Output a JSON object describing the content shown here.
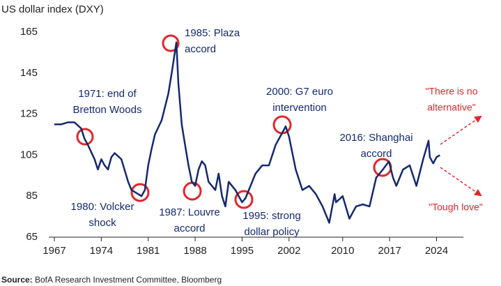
{
  "chart_data": {
    "type": "line",
    "title": "US dollar index (DXY)",
    "x": [
      1967,
      1968,
      1969,
      1970,
      1971,
      1971.5,
      1972,
      1973,
      1973.5,
      1974,
      1974.5,
      1975,
      1975.5,
      1976,
      1977,
      1978,
      1978.5,
      1979,
      1980,
      1980.5,
      1981,
      1981.5,
      1982,
      1983,
      1984,
      1984.5,
      1985.2,
      1985.5,
      1986,
      1986.5,
      1987,
      1987.5,
      1988,
      1988.5,
      1989,
      1989.5,
      1990,
      1991,
      1991.5,
      1992,
      1992.5,
      1993,
      1994,
      1995,
      1995.5,
      1996,
      1997,
      1998,
      1999,
      2000,
      2001,
      2001.5,
      2002,
      2002.5,
      2003,
      2004,
      2005,
      2006,
      2007,
      2008,
      2008.8,
      2009,
      2010,
      2011,
      2012,
      2013,
      2014,
      2015,
      2016,
      2016.9,
      2017.5,
      2018,
      2019,
      2020,
      2021,
      2022,
      2022.8,
      2023,
      2023.5,
      2024,
      2024.5
    ],
    "series": [
      {
        "name": "DXY",
        "color": "#14286e",
        "values": [
          120,
          120,
          121,
          121,
          118,
          113,
          110,
          103,
          98,
          103,
          100,
          98,
          104,
          106,
          103,
          92,
          88,
          87,
          85,
          88,
          100,
          108,
          115,
          122,
          135,
          145,
          160,
          140,
          120,
          110,
          100,
          92,
          90,
          98,
          102,
          100,
          92,
          88,
          96,
          85,
          80,
          92,
          88,
          82,
          84,
          88,
          96,
          100,
          100,
          110,
          116,
          119,
          114,
          106,
          98,
          88,
          90,
          86,
          80,
          72,
          86,
          82,
          85,
          74,
          80,
          81,
          80,
          94,
          98,
          102,
          94,
          90,
          98,
          100,
          90,
          103,
          112,
          104,
          101,
          104,
          105
        ]
      }
    ],
    "xlim": [
      1967,
      2028
    ],
    "xticks": [
      1967,
      1974,
      1981,
      1988,
      1995,
      2002,
      2010,
      2017,
      2024
    ],
    "ylim": [
      65,
      165
    ],
    "yticks": [
      65,
      85,
      105,
      125,
      145,
      165
    ],
    "annotations": [
      {
        "lines": [
          "1971: end of",
          "Bretton Woods"
        ]
      },
      {
        "lines": [
          "1985: Plaza",
          "accord"
        ]
      },
      {
        "lines": [
          "1980: Volcker",
          "shock"
        ]
      },
      {
        "lines": [
          "1987: Louvre",
          "accord"
        ]
      },
      {
        "lines": [
          "1995: strong",
          "dollar policy"
        ]
      },
      {
        "lines": [
          "2000: G7 euro",
          "intervention"
        ]
      },
      {
        "lines": [
          "2016: Shanghai",
          "accord"
        ]
      },
      {
        "lines": [
          "\"There is no",
          "alternative\""
        ]
      },
      {
        "lines": [
          "\"Tough love\""
        ]
      }
    ],
    "source_label": "Source:",
    "source": "BofA Research Investment Committee, Bloomberg"
  }
}
